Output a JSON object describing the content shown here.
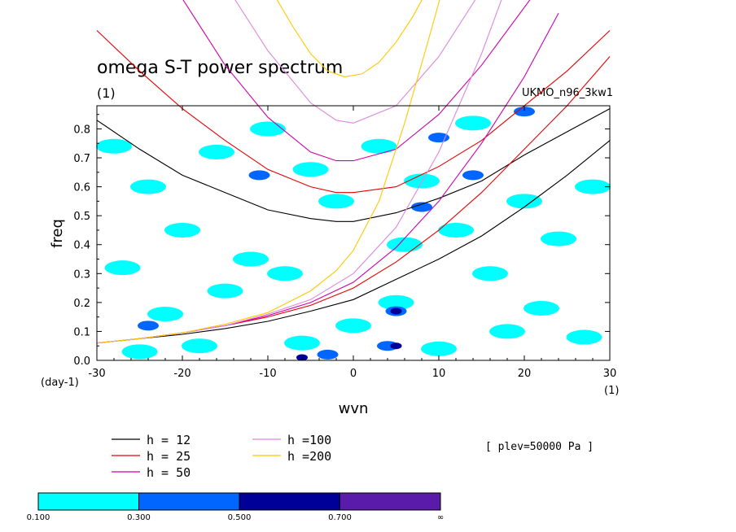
{
  "chart_data": {
    "type": "line",
    "title": "omega S-T power spectrum",
    "subtitle": "(1)",
    "source_label": "UKMO_n96_3kw1",
    "xlabel": "wvn",
    "ylabel": "freq",
    "x_unit_label": "(1)",
    "y_unit_label": "(day-1)",
    "xlim": [
      -30,
      30
    ],
    "ylim": [
      0,
      0.88
    ],
    "x_ticks": [
      -30,
      -20,
      -10,
      0,
      10,
      20,
      30
    ],
    "y_ticks": [
      0.0,
      0.1,
      0.2,
      0.3,
      0.4,
      0.5,
      0.6,
      0.7,
      0.8
    ],
    "x_tick_labels": [
      "-30",
      "-20",
      "-10",
      "0",
      "10",
      "20",
      "30"
    ],
    "y_tick_labels": [
      "0.0",
      "0.1",
      "0.2",
      "0.3",
      "0.4",
      "0.5",
      "0.6",
      "0.7",
      "0.8"
    ],
    "annotation": "[ plev=50000 Pa ]",
    "series": [
      {
        "name": "h = 12",
        "color": "#000000",
        "branches": [
          {
            "x": [
              -30,
              -25,
              -20,
              -15,
              -10,
              -5,
              -2,
              0,
              5,
              10,
              15,
              20,
              25,
              30
            ],
            "y": [
              0.83,
              0.73,
              0.64,
              0.58,
              0.52,
              0.49,
              0.48,
              0.48,
              0.51,
              0.56,
              0.62,
              0.71,
              0.79,
              0.87
            ]
          },
          {
            "x": [
              -30,
              -25,
              -20,
              -15,
              -10,
              -5,
              0,
              5,
              10,
              15,
              20,
              25,
              30
            ],
            "y": [
              0.06,
              0.075,
              0.09,
              0.11,
              0.135,
              0.17,
              0.21,
              0.28,
              0.35,
              0.43,
              0.53,
              0.64,
              0.76
            ]
          }
        ]
      },
      {
        "name": "h = 25",
        "color": "#e60000",
        "branches": [
          {
            "x": [
              -30,
              -25,
              -20,
              -15,
              -10,
              -5,
              -2,
              0,
              5,
              10,
              15,
              20,
              25,
              30
            ],
            "y": [
              1.14,
              1.0,
              0.87,
              0.76,
              0.66,
              0.6,
              0.58,
              0.58,
              0.6,
              0.67,
              0.76,
              0.88,
              1.0,
              1.14
            ]
          },
          {
            "x": [
              -30,
              -25,
              -20,
              -15,
              -10,
              -5,
              0,
              5,
              10,
              15,
              20,
              25,
              30
            ],
            "y": [
              0.06,
              0.075,
              0.095,
              0.12,
              0.15,
              0.19,
              0.25,
              0.34,
              0.45,
              0.58,
              0.73,
              0.88,
              1.05
            ]
          }
        ]
      },
      {
        "name": "h = 50",
        "color": "#cc00aa",
        "branches": [
          {
            "x": [
              -20,
              -15,
              -10,
              -5,
              -2,
              0,
              5,
              10,
              15,
              20,
              22
            ],
            "y": [
              1.25,
              1.02,
              0.84,
              0.72,
              0.69,
              0.69,
              0.73,
              0.85,
              1.02,
              1.22,
              1.3
            ]
          },
          {
            "x": [
              -30,
              -25,
              -20,
              -15,
              -10,
              -5,
              0,
              5,
              10,
              15,
              20,
              24
            ],
            "y": [
              0.06,
              0.075,
              0.095,
              0.12,
              0.155,
              0.2,
              0.27,
              0.39,
              0.55,
              0.75,
              0.98,
              1.2
            ]
          }
        ]
      },
      {
        "name": "h =100",
        "color": "#dd88dd",
        "branches": [
          {
            "x": [
              -15,
              -10,
              -5,
              -2,
              0,
              5,
              10,
              15,
              17
            ],
            "y": [
              1.3,
              1.07,
              0.89,
              0.83,
              0.82,
              0.88,
              1.05,
              1.28,
              1.36
            ]
          },
          {
            "x": [
              -30,
              -25,
              -20,
              -15,
              -10,
              -5,
              0,
              5,
              10,
              15,
              18
            ],
            "y": [
              0.06,
              0.075,
              0.095,
              0.12,
              0.16,
              0.21,
              0.3,
              0.46,
              0.72,
              1.06,
              1.3
            ]
          }
        ]
      },
      {
        "name": "h =200",
        "color": "#ffc800",
        "branches": [
          {
            "x": [
              -9,
              -7,
              -5,
              -3,
              -1,
              1,
              3,
              5,
              7,
              9,
              11
            ],
            "y": [
              1.25,
              1.15,
              1.06,
              1.0,
              0.98,
              0.99,
              1.03,
              1.1,
              1.19,
              1.3,
              1.4
            ]
          },
          {
            "x": [
              -30,
              -25,
              -20,
              -15,
              -10,
              -5,
              -2,
              0,
              3,
              6,
              9,
              12
            ],
            "y": [
              0.06,
              0.075,
              0.095,
              0.125,
              0.165,
              0.24,
              0.31,
              0.38,
              0.55,
              0.82,
              1.13,
              1.45
            ]
          }
        ]
      }
    ],
    "color_scale": [
      {
        "label": "0.100",
        "color": "#00ffff"
      },
      {
        "label": "0.300",
        "color": "#0066ff"
      },
      {
        "label": "0.500",
        "color": "#000099"
      },
      {
        "label": "0.700",
        "color": "#5a1aaa"
      },
      {
        "label": "∞",
        "color": ""
      }
    ],
    "contour_patches": [
      {
        "x": -25,
        "y": 0.03,
        "level": 1
      },
      {
        "x": -22,
        "y": 0.16,
        "level": 1
      },
      {
        "x": -18,
        "y": 0.05,
        "level": 1
      },
      {
        "x": -15,
        "y": 0.24,
        "level": 1
      },
      {
        "x": -12,
        "y": 0.35,
        "level": 1
      },
      {
        "x": -27,
        "y": 0.32,
        "level": 1
      },
      {
        "x": -20,
        "y": 0.45,
        "level": 1
      },
      {
        "x": -24,
        "y": 0.6,
        "level": 1
      },
      {
        "x": -16,
        "y": 0.72,
        "level": 1
      },
      {
        "x": -10,
        "y": 0.8,
        "level": 1
      },
      {
        "x": -5,
        "y": 0.66,
        "level": 1
      },
      {
        "x": -2,
        "y": 0.55,
        "level": 1
      },
      {
        "x": 3,
        "y": 0.74,
        "level": 1
      },
      {
        "x": 8,
        "y": 0.62,
        "level": 1
      },
      {
        "x": 12,
        "y": 0.45,
        "level": 1
      },
      {
        "x": 16,
        "y": 0.3,
        "level": 1
      },
      {
        "x": 22,
        "y": 0.18,
        "level": 1
      },
      {
        "x": 27,
        "y": 0.08,
        "level": 1
      },
      {
        "x": 24,
        "y": 0.42,
        "level": 1
      },
      {
        "x": 20,
        "y": 0.55,
        "level": 1
      },
      {
        "x": 28,
        "y": 0.6,
        "level": 1
      },
      {
        "x": 5,
        "y": 0.2,
        "level": 1
      },
      {
        "x": 0,
        "y": 0.12,
        "level": 1
      },
      {
        "x": -6,
        "y": 0.06,
        "level": 1
      },
      {
        "x": 10,
        "y": 0.04,
        "level": 1
      },
      {
        "x": 18,
        "y": 0.1,
        "level": 1
      },
      {
        "x": -8,
        "y": 0.3,
        "level": 1
      },
      {
        "x": 6,
        "y": 0.4,
        "level": 1
      },
      {
        "x": -28,
        "y": 0.74,
        "level": 1
      },
      {
        "x": 14,
        "y": 0.82,
        "level": 1
      },
      {
        "x": -3,
        "y": 0.02,
        "level": 2
      },
      {
        "x": 4,
        "y": 0.05,
        "level": 2
      },
      {
        "x": 10,
        "y": 0.77,
        "level": 2
      },
      {
        "x": 14,
        "y": 0.64,
        "level": 2
      },
      {
        "x": 8,
        "y": 0.53,
        "level": 2
      },
      {
        "x": -11,
        "y": 0.64,
        "level": 2
      },
      {
        "x": -24,
        "y": 0.12,
        "level": 2
      },
      {
        "x": 5,
        "y": 0.17,
        "level": 2
      },
      {
        "x": 20,
        "y": 0.86,
        "level": 2
      },
      {
        "x": 5,
        "y": 0.05,
        "level": 3
      },
      {
        "x": 5,
        "y": 0.17,
        "level": 3
      },
      {
        "x": -6,
        "y": 0.01,
        "level": 3
      }
    ]
  }
}
